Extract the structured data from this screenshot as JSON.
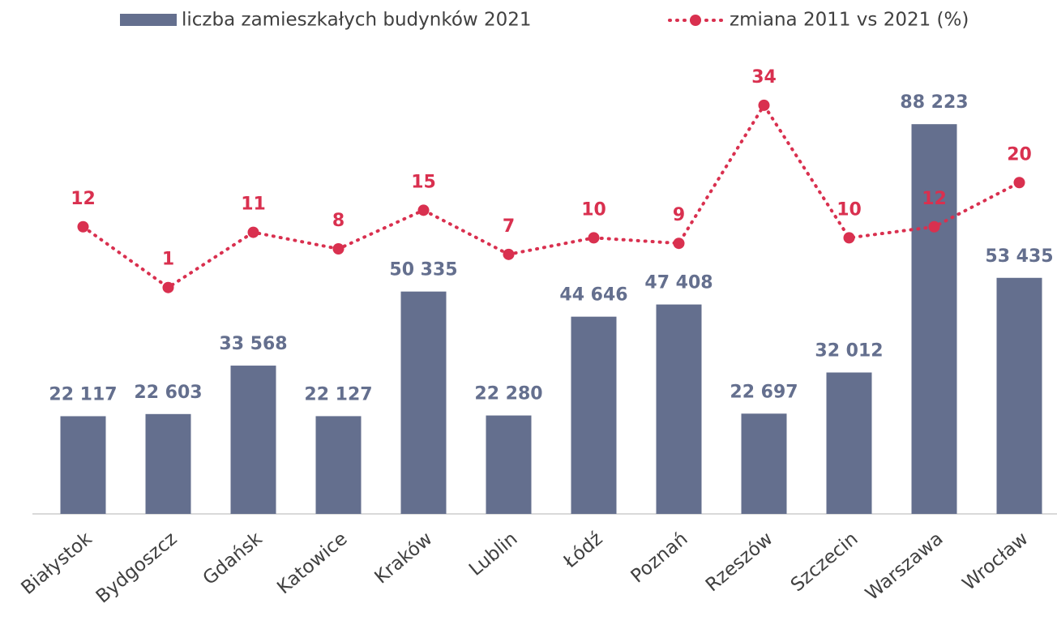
{
  "chart_data": {
    "type": "bar",
    "categories": [
      "Białystok",
      "Bydgoszcz",
      "Gdańsk",
      "Katowice",
      "Kraków",
      "Lublin",
      "Łódź",
      "Poznań",
      "Rzeszów",
      "Szczecin",
      "Warszawa",
      "Wrocław"
    ],
    "series": [
      {
        "name": "liczba zamieszkałych budynków 2021",
        "type": "bar",
        "color": "#646f8e",
        "values": [
          22117,
          22603,
          33568,
          22127,
          50335,
          22280,
          44646,
          47408,
          22697,
          32012,
          88223,
          53435
        ],
        "value_labels": [
          "22 117",
          "22 603",
          "33 568",
          "22 127",
          "50 335",
          "22 280",
          "44 646",
          "47 408",
          "22 697",
          "32 012",
          "88 223",
          "53 435"
        ]
      },
      {
        "name": "zmiana 2011 vs 2021 (%)",
        "type": "line",
        "axis": "y2",
        "color": "#d9304f",
        "line_style": "dotted",
        "values": [
          12,
          1,
          11,
          8,
          15,
          7,
          10,
          9,
          34,
          10,
          12,
          20
        ]
      }
    ],
    "ylim": [
      0,
      100000
    ],
    "y2lim": [
      -40,
      40
    ],
    "grid": false,
    "legend": "top"
  }
}
